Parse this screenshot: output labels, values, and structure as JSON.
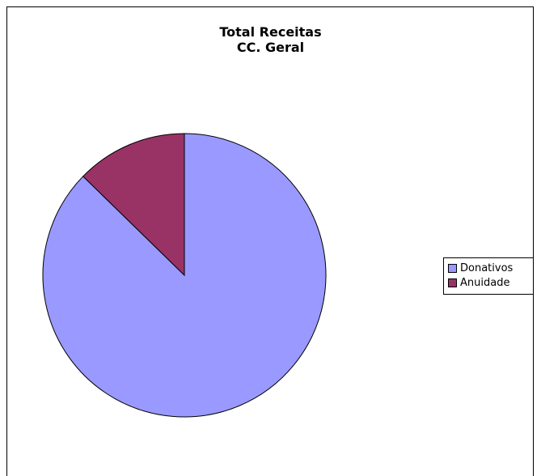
{
  "chart_data": {
    "type": "pie",
    "title_lines": [
      "Total Receitas",
      "CC. Geral"
    ],
    "categories": [
      "Donativos",
      "Anuidade"
    ],
    "values": [
      87.3,
      12.7
    ],
    "colors": [
      "#9999ff",
      "#993366"
    ],
    "start_angle_deg": 0,
    "direction": "clockwise",
    "legend_position": "right"
  }
}
